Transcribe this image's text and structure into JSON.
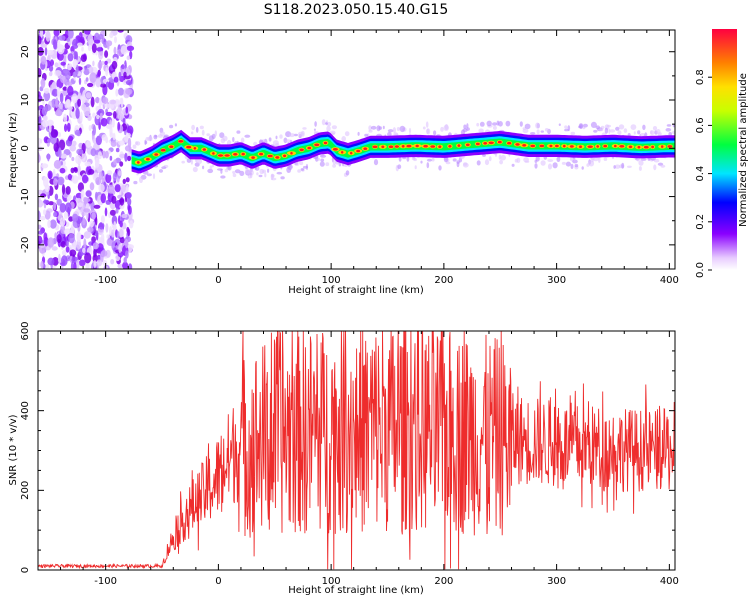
{
  "title": "S118.2023.050.15.40.G15",
  "chart_data": [
    {
      "type": "heatmap",
      "name": "spectrogram",
      "xlabel": "Height of straight line (km)",
      "ylabel": "Frequency (Hz)",
      "xlim": [
        -160,
        405
      ],
      "ylim": [
        -25,
        24.5
      ],
      "x_ticks": [
        -100,
        0,
        100,
        200,
        300,
        400
      ],
      "y_ticks": [
        -20,
        -10,
        0,
        10,
        20
      ],
      "noise_region_x": [
        -160,
        -77
      ],
      "ridge": {
        "x": [
          -77,
          -70,
          -60,
          -50,
          -40,
          -33,
          -25,
          -15,
          -5,
          0,
          10,
          20,
          30,
          40,
          50,
          60,
          70,
          80,
          90,
          98,
          105,
          115,
          125,
          135,
          150,
          175,
          200,
          225,
          250,
          275,
          300,
          325,
          350,
          375,
          400
        ],
        "y": [
          -2.5,
          -3,
          -2,
          -0.5,
          0.5,
          1.5,
          0,
          0,
          -1,
          -1.5,
          -1.5,
          -1,
          -2,
          -1,
          -2,
          -1.5,
          -0.5,
          0,
          1,
          1.2,
          -0.5,
          -1.2,
          -0.5,
          0.3,
          0.3,
          0.5,
          0.3,
          0.8,
          1.3,
          0.5,
          0.5,
          0.3,
          0.5,
          0.2,
          0.4
        ]
      },
      "colorbar": {
        "label": "Normalized spectral amplitude",
        "range": [
          0,
          1
        ],
        "ticks": [
          0.0,
          0.2,
          0.4,
          0.6,
          0.8
        ],
        "tick_labels": [
          "0.0",
          "0.2",
          "0.4",
          "0.6",
          "0.8"
        ],
        "colormap": "rainbow (white-violet-blue-cyan-green-yellow-orange-red)"
      }
    },
    {
      "type": "line",
      "name": "snr",
      "xlabel": "Height of straight line (km)",
      "ylabel": "SNR (10 * v/v)",
      "xlim": [
        -160,
        405
      ],
      "ylim": [
        0,
        600
      ],
      "x_ticks": [
        -100,
        0,
        100,
        200,
        300,
        400
      ],
      "y_ticks": [
        0,
        200,
        400,
        600
      ],
      "series": [
        {
          "color": "#ee2c2c",
          "envelope": {
            "x": [
              -160,
              -50,
              -45,
              -35,
              -25,
              -15,
              -5,
              5,
              15,
              30,
              50,
              80,
              110,
              140,
              170,
              200,
              230,
              260,
              290,
              320,
              350,
              380,
              405
            ],
            "y": [
              10,
              10,
              50,
              110,
              150,
              185,
              215,
              260,
              300,
              320,
              340,
              350,
              350,
              360,
              360,
              350,
              340,
              330,
              320,
              310,
              305,
              300,
              300
            ]
          }
        }
      ]
    }
  ]
}
